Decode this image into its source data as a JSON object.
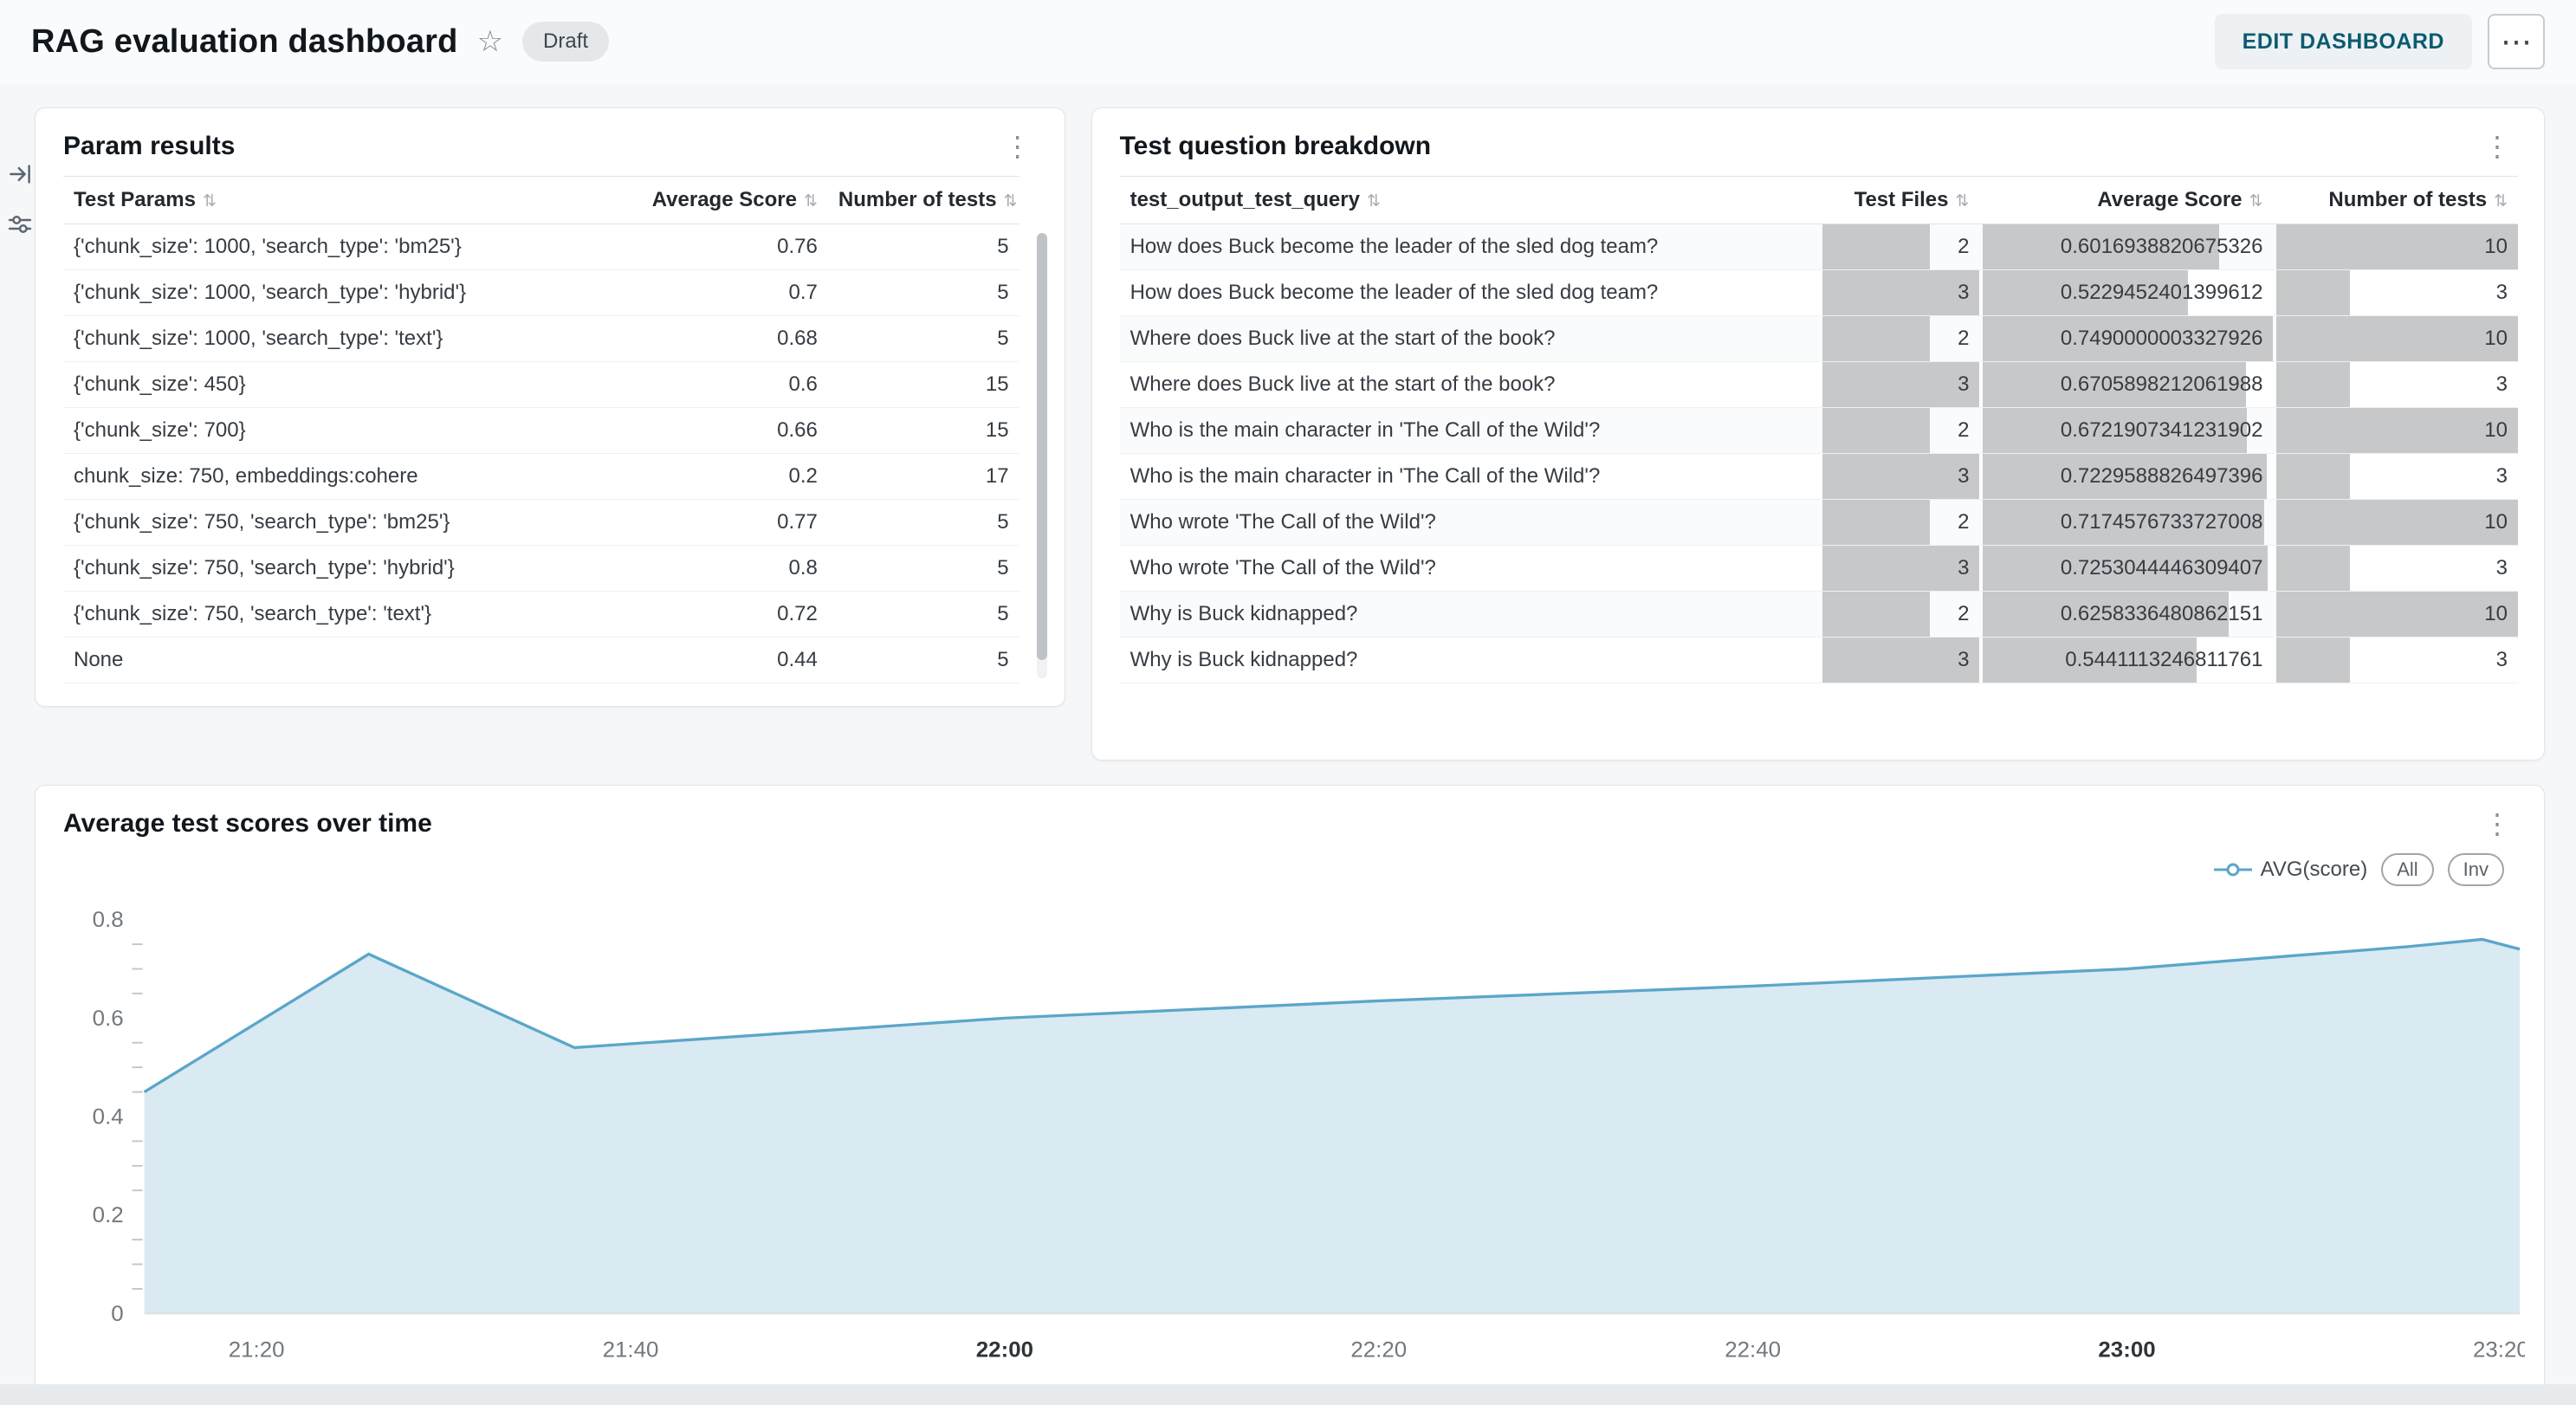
{
  "header": {
    "title": "RAG evaluation dashboard",
    "status_badge": "Draft",
    "edit_button": "EDIT DASHBOARD"
  },
  "glyphs": {
    "star": "☆",
    "ellipsis": "⋯",
    "kebab": "⋮",
    "sort": "⇅"
  },
  "colors": {
    "accent_teal": "#0c5b70",
    "bar_gray": "#c7c8c9",
    "chart_line": "#5ba6c9",
    "chart_fill": "#d9eaf3"
  },
  "param_results": {
    "title": "Param results",
    "columns": [
      "Test Params",
      "Average Score",
      "Number of tests"
    ],
    "rows": [
      [
        "{'chunk_size': 1000, 'search_type': 'bm25'}",
        "0.76",
        "5"
      ],
      [
        "{'chunk_size': 1000, 'search_type': 'hybrid'}",
        "0.7",
        "5"
      ],
      [
        "{'chunk_size': 1000, 'search_type': 'text'}",
        "0.68",
        "5"
      ],
      [
        "{'chunk_size': 450}",
        "0.6",
        "15"
      ],
      [
        "{'chunk_size': 700}",
        "0.66",
        "15"
      ],
      [
        "chunk_size: 750, embeddings:cohere",
        "0.2",
        "17"
      ],
      [
        "{'chunk_size': 750, 'search_type': 'bm25'}",
        "0.77",
        "5"
      ],
      [
        "{'chunk_size': 750, 'search_type': 'hybrid'}",
        "0.8",
        "5"
      ],
      [
        "{'chunk_size': 750, 'search_type': 'text'}",
        "0.72",
        "5"
      ],
      [
        "None",
        "0.44",
        "5"
      ]
    ]
  },
  "question_breakdown": {
    "title": "Test question breakdown",
    "columns": [
      "test_output_test_query",
      "Test Files",
      "Average Score",
      "Number of tests"
    ],
    "rows": [
      [
        "How does Buck become the leader of the sled dog team?",
        "2",
        "0.6016938820675326",
        "10"
      ],
      [
        "How does Buck become the leader of the sled dog team?",
        "3",
        "0.5229452401399612",
        "3"
      ],
      [
        "Where does Buck live at the start of the book?",
        "2",
        "0.7490000003327926",
        "10"
      ],
      [
        "Where does Buck live at the start of the book?",
        "3",
        "0.6705898212061988",
        "3"
      ],
      [
        "Who is the main character in 'The Call of the Wild'?",
        "2",
        "0.6721907341231902",
        "10"
      ],
      [
        "Who is the main character in 'The Call of the Wild'?",
        "3",
        "0.7229588826497396",
        "3"
      ],
      [
        "Who wrote 'The Call of the Wild'?",
        "2",
        "0.7174576733727008",
        "10"
      ],
      [
        "Who wrote 'The Call of the Wild'?",
        "3",
        "0.7253044446309407",
        "3"
      ],
      [
        "Why is Buck kidnapped?",
        "2",
        "0.6258336480862151",
        "10"
      ],
      [
        "Why is Buck kidnapped?",
        "3",
        "0.5441113246811761",
        "3"
      ]
    ]
  },
  "chart": {
    "title": "Average test scores over time",
    "legend_label": "AVG(score)",
    "buttons": [
      "All",
      "Inv"
    ],
    "chart_data": {
      "type": "area",
      "title": "Average test scores over time",
      "xlabel": "",
      "ylabel": "",
      "x_range": [
        "21:14",
        "23:21"
      ],
      "ylim": [
        0,
        0.8
      ],
      "y_ticks": [
        "0",
        "0.2",
        "0.4",
        "0.6",
        "0.8"
      ],
      "x_ticks": [
        "21:20",
        "21:40",
        "22:00",
        "22:20",
        "22:40",
        "23:00",
        "23:20"
      ],
      "x_bold_ticks": [
        "22:00",
        "23:00"
      ],
      "grid": false,
      "legend_position": "top-right",
      "line_color": "#5ba6c9",
      "fill_color": "#d9eaf3",
      "series": [
        {
          "name": "AVG(score)",
          "points": [
            {
              "x": "21:14",
              "y": 0.45
            },
            {
              "x": "21:26",
              "y": 0.73
            },
            {
              "x": "21:37",
              "y": 0.54
            },
            {
              "x": "22:00",
              "y": 0.6
            },
            {
              "x": "22:20",
              "y": 0.635
            },
            {
              "x": "22:40",
              "y": 0.665
            },
            {
              "x": "23:00",
              "y": 0.7
            },
            {
              "x": "23:15",
              "y": 0.745
            },
            {
              "x": "23:19",
              "y": 0.76
            },
            {
              "x": "23:21",
              "y": 0.74
            }
          ]
        }
      ]
    }
  }
}
